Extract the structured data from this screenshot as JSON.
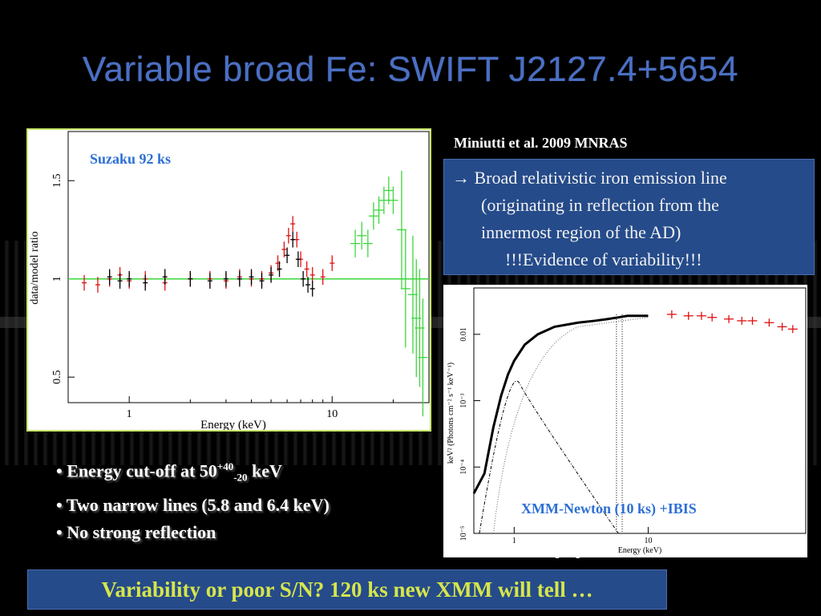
{
  "slide": {
    "title": "Variable broad Fe: SWIFT J2127.4+5654",
    "reference_top": "Miniutti et al. 2009 MNRAS",
    "reference_bottom": "Panessa et al. in prep",
    "bluebox": {
      "arrow": "→",
      "line1": "Broad relativistic iron emission line",
      "line2": "(originating in reflection from the",
      "line3": "innermost region of the AD)",
      "line4": "!!!Evidence of variability!!!"
    },
    "bullets": {
      "b1_prefix": "• Energy cut-off at 50",
      "b1_sup": "+40",
      "b1_sub": "-20",
      "b1_suffix": " keV",
      "b2": "• Two narrow lines (5.8 and 6.4 keV)",
      "b3": "• No strong reflection"
    },
    "bottom_banner": "Variability or poor S/N? 120 ks new XMM will tell …",
    "colors": {
      "accent_blue": "#254b8a",
      "title_blue": "#4a6fc4",
      "banner_text": "#d6e64b",
      "green": "#3dd63d",
      "red": "#e01010"
    }
  },
  "chart_data": [
    {
      "type": "scatter",
      "title": "",
      "label_in_plot": "Suzaku 92 ks",
      "xlabel": "Energy (keV)",
      "ylabel": "data/model ratio",
      "x_scale": "log",
      "xlim": [
        0.5,
        30
      ],
      "ylim": [
        0.37,
        1.75
      ],
      "x_ticks": [
        "1",
        "10"
      ],
      "y_ticks": [
        "0.5",
        "1",
        "1.5"
      ],
      "reference_line": 1.0,
      "series": [
        {
          "color": "red",
          "x": [
            0.6,
            0.7,
            0.8,
            0.9,
            1.0,
            1.2,
            1.5,
            2.0,
            2.5,
            3.0,
            3.5,
            4.0,
            4.5,
            5.0,
            5.4,
            5.8,
            6.1,
            6.4,
            6.7,
            7.0,
            7.5,
            8.0,
            9.0,
            10.0
          ],
          "y": [
            0.98,
            0.97,
            1.0,
            1.02,
            0.99,
            1.0,
            0.98,
            1.0,
            1.0,
            0.99,
            1.01,
            1.0,
            1.0,
            1.03,
            1.08,
            1.15,
            1.22,
            1.28,
            1.2,
            1.1,
            1.05,
            1.02,
            1.01,
            1.08
          ]
        },
        {
          "color": "black",
          "x": [
            0.8,
            0.9,
            1.0,
            1.2,
            1.5,
            2.0,
            2.5,
            3.0,
            3.5,
            4.0,
            4.5,
            5.0,
            5.5,
            6.0,
            6.4,
            6.8,
            7.2,
            7.6,
            8.0
          ],
          "y": [
            1.01,
            0.99,
            1.0,
            0.98,
            1.01,
            1.0,
            0.99,
            1.0,
            1.0,
            1.01,
            0.99,
            1.02,
            1.05,
            1.12,
            1.2,
            1.1,
            1.0,
            0.97,
            0.95
          ]
        },
        {
          "color": "green",
          "x": [
            13.0,
            14.0,
            15.0,
            16.0,
            17.0,
            18.0,
            19.0,
            20.0,
            22.0,
            23.0,
            25.0,
            26.0,
            27.0,
            28.0
          ],
          "y": [
            1.18,
            1.22,
            1.18,
            1.32,
            1.35,
            1.4,
            1.45,
            1.4,
            1.25,
            0.95,
            0.92,
            0.8,
            0.75,
            0.6
          ]
        }
      ]
    },
    {
      "type": "line",
      "title": "",
      "label_in_plot": "XMM-Newton (10 ks) +IBIS",
      "xlabel": "Energy (keV)",
      "ylabel": "keV² (Photons cm⁻² s⁻¹ keV⁻¹)",
      "x_scale": "log",
      "y_scale": "log",
      "xlim": [
        0.5,
        150
      ],
      "ylim": [
        1e-05,
        0.05
      ],
      "x_ticks": [
        "1",
        "10"
      ],
      "y_ticks": [
        "10⁻⁵",
        "10⁻⁴",
        "10⁻³",
        "0.01"
      ],
      "series": [
        {
          "color": "black",
          "x": [
            0.5,
            0.6,
            0.7,
            0.8,
            0.9,
            1.0,
            1.2,
            1.5,
            2.0,
            3.0,
            4.0,
            5.0,
            6.0,
            7.0,
            8.0,
            10.0
          ],
          "y": [
            4e-05,
            8e-05,
            0.0004,
            0.0012,
            0.0025,
            0.004,
            0.007,
            0.01,
            0.013,
            0.015,
            0.016,
            0.017,
            0.018,
            0.019,
            0.019,
            0.019
          ]
        },
        {
          "color": "red",
          "x": [
            15.0,
            20.0,
            25.0,
            30.0,
            40.0,
            50.0,
            60.0,
            80.0,
            100.0,
            120.0
          ],
          "y": [
            0.02,
            0.019,
            0.019,
            0.018,
            0.017,
            0.016,
            0.016,
            0.015,
            0.013,
            0.012
          ]
        }
      ]
    }
  ]
}
